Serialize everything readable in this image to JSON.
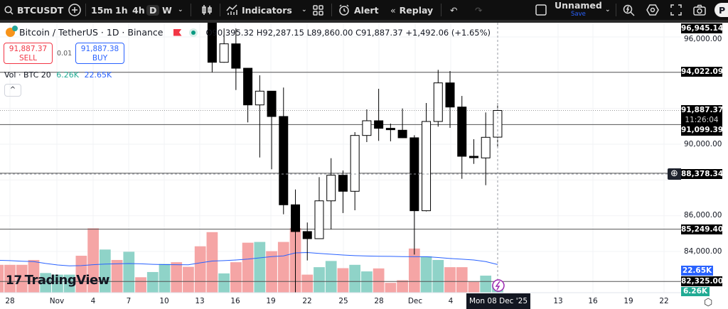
{
  "toolbar": {
    "symbol": "BTCUSDT",
    "intervals": [
      "15m",
      "1h",
      "4h",
      "D",
      "W"
    ],
    "active_interval": "D",
    "indicators": "Indicators",
    "alert": "Alert",
    "replay": "Replay",
    "layout_name": "Unnamed",
    "save": "Save",
    "publish": "P"
  },
  "legend": {
    "title": "Bitcoin / TetherUS · 1D · Binance",
    "ohlc": "O90,395.32 H92,287.15 L89,860.00 C91,887.37 +1,492.06 (+1.65%)",
    "sell_price": "91,887.37",
    "sell": "SELL",
    "spread": "0.01",
    "buy_price": "91,887.38",
    "buy": "BUY",
    "vol_label": "Vol · BTC 20",
    "vol_value": "6.26K",
    "vol_ma": "22.65K",
    "collapse": "^"
  },
  "colors": {
    "up_vol": "#8fd3c8",
    "down_vol": "#f5a5a5",
    "ma": "#2962ff",
    "toolbar": "#0f0f0f"
  },
  "watermark": "TradingView",
  "price_labels": {
    "top": "96,945.14",
    "l1": "94,022.09",
    "last": "91,887.37",
    "countdown": "11:26:04",
    "l2": "91,099.39",
    "crosshair": "88,378.34",
    "l3": "85,249.40",
    "l4": "82,325.00",
    "vol_ma": "22.65K",
    "vol": "6.26K"
  },
  "price_axis": [
    "96,000.00",
    "90,000.00",
    "86,000.00",
    "84,000.00"
  ],
  "time_axis": [
    "28",
    "Nov",
    "4",
    "7",
    "10",
    "13",
    "16",
    "19",
    "22",
    "25",
    "28",
    "Dec",
    "4",
    "13",
    "16",
    "19",
    "22"
  ],
  "crosshair_time": "Mon 08 Dec '25",
  "chart_data": {
    "type": "candlestick",
    "ylim": [
      82000,
      97000
    ],
    "hlines": [
      94022.09,
      91099.39,
      88378.34,
      85249.4,
      82325.0
    ],
    "last_price": 91887.37,
    "candles": [
      {
        "d": "2025-11-14",
        "o": 99700,
        "h": 99900,
        "l": 94020,
        "c": 94582
      },
      {
        "d": "2025-11-15",
        "o": 94582,
        "h": 96477,
        "l": 94560,
        "c": 95615
      },
      {
        "d": "2025-11-16",
        "o": 95615,
        "h": 96480,
        "l": 93032,
        "c": 94250
      },
      {
        "d": "2025-11-17",
        "o": 94250,
        "h": 94260,
        "l": 91220,
        "c": 92198
      },
      {
        "d": "2025-11-18",
        "o": 92198,
        "h": 93855,
        "l": 89258,
        "c": 92968
      },
      {
        "d": "2025-11-19",
        "o": 92968,
        "h": 92980,
        "l": 88598,
        "c": 91550
      },
      {
        "d": "2025-11-20",
        "o": 91550,
        "h": 93167,
        "l": 86080,
        "c": 86612
      },
      {
        "d": "2025-11-21",
        "o": 86612,
        "h": 87470,
        "l": 80600,
        "c": 85115
      },
      {
        "d": "2025-11-22",
        "o": 85115,
        "h": 85620,
        "l": 83500,
        "c": 84717
      },
      {
        "d": "2025-11-23",
        "o": 84717,
        "h": 88160,
        "l": 84700,
        "c": 86833
      },
      {
        "d": "2025-11-24",
        "o": 86833,
        "h": 89218,
        "l": 85245,
        "c": 88265
      },
      {
        "d": "2025-11-25",
        "o": 88265,
        "h": 88530,
        "l": 86150,
        "c": 87367
      },
      {
        "d": "2025-11-26",
        "o": 87367,
        "h": 90676,
        "l": 86306,
        "c": 90490
      },
      {
        "d": "2025-11-27",
        "o": 90490,
        "h": 91948,
        "l": 90120,
        "c": 91312
      },
      {
        "d": "2025-11-28",
        "o": 91312,
        "h": 93100,
        "l": 90187,
        "c": 90890
      },
      {
        "d": "2025-11-29",
        "o": 90890,
        "h": 91153,
        "l": 90160,
        "c": 90810
      },
      {
        "d": "2025-11-30",
        "o": 90783,
        "h": 92000,
        "l": 90340,
        "c": 90360
      },
      {
        "d": "2025-12-01",
        "o": 90360,
        "h": 90500,
        "l": 83830,
        "c": 86280
      },
      {
        "d": "2025-12-02",
        "o": 86280,
        "h": 92305,
        "l": 86240,
        "c": 91272
      },
      {
        "d": "2025-12-03",
        "o": 91272,
        "h": 94160,
        "l": 90982,
        "c": 93430
      },
      {
        "d": "2025-12-04",
        "o": 93430,
        "h": 94093,
        "l": 90915,
        "c": 92080
      },
      {
        "d": "2025-12-05",
        "o": 92080,
        "h": 92700,
        "l": 88066,
        "c": 89325
      },
      {
        "d": "2025-12-06",
        "o": 89325,
        "h": 90280,
        "l": 88900,
        "c": 89245
      },
      {
        "d": "2025-12-07",
        "o": 89234,
        "h": 91777,
        "l": 87708,
        "c": 90386
      },
      {
        "d": "2025-12-08",
        "o": 90395.32,
        "h": 92287.15,
        "l": 89860.0,
        "c": 91887.37
      }
    ],
    "volume_start": "2025-10-27",
    "volume_k": [
      22.4,
      22.4,
      22.4,
      26.3,
      15.8,
      14.5,
      14.5,
      29.7,
      51.8,
      34.7,
      26.3,
      32.9,
      12.4,
      16.6,
      23.1,
      24.5,
      20.8,
      37.3,
      48.7,
      15.5,
      24.5,
      40.2,
      40.8,
      33.4,
      40.8,
      52,
      14.5,
      20.5,
      25.5,
      19.7,
      22.4,
      17.1,
      19.5,
      7.9,
      10,
      35.5,
      29.2,
      26.3,
      20.5,
      20.5,
      8.7,
      13.7,
      6.26
    ],
    "volume_up": [
      false,
      false,
      false,
      false,
      true,
      true,
      true,
      false,
      false,
      true,
      false,
      true,
      false,
      true,
      true,
      false,
      false,
      false,
      false,
      true,
      false,
      false,
      true,
      false,
      false,
      false,
      false,
      true,
      true,
      false,
      true,
      true,
      false,
      false,
      false,
      false,
      true,
      true,
      false,
      false,
      false,
      true,
      true
    ],
    "volume_ma_k": [
      26,
      25.8,
      25.3,
      25,
      23.5,
      22.3,
      21.6,
      21.8,
      22.5,
      23,
      23.2,
      23.4,
      23.2,
      22.8,
      22.6,
      22.5,
      22.4,
      24,
      25.4,
      25.8,
      26.3,
      27,
      28,
      29,
      29.6,
      32,
      32.3,
      31.6,
      30.9,
      30.3,
      29.8,
      29.5,
      29.3,
      29.2,
      29,
      28.9,
      28.9,
      28.3,
      27.5,
      26.9,
      26.3,
      25,
      22.65
    ]
  }
}
